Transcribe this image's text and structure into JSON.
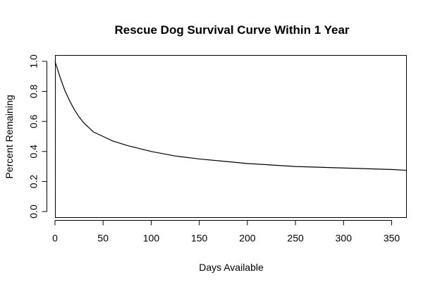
{
  "chart_data": {
    "type": "line",
    "title": "Rescue Dog Survival Curve Within 1 Year",
    "xlabel": "Days Available",
    "ylabel": "Percent Remaining",
    "xlim": [
      0,
      365
    ],
    "ylim": [
      0,
      1
    ],
    "x_ticks": [
      0,
      50,
      100,
      150,
      200,
      250,
      300,
      350
    ],
    "y_ticks": [
      0.0,
      0.2,
      0.4,
      0.6,
      0.8,
      1.0
    ],
    "y_tick_labels": [
      "0.0",
      "0.2",
      "0.4",
      "0.6",
      "0.8",
      "1.0"
    ],
    "grid": false,
    "series": [
      {
        "x": [
          0,
          5,
          10,
          15,
          20,
          25,
          30,
          40,
          50,
          60,
          75,
          100,
          125,
          150,
          175,
          200,
          250,
          300,
          350,
          365
        ],
        "y": [
          1.0,
          0.9,
          0.81,
          0.74,
          0.68,
          0.63,
          0.59,
          0.53,
          0.5,
          0.47,
          0.44,
          0.4,
          0.37,
          0.35,
          0.335,
          0.32,
          0.3,
          0.29,
          0.28,
          0.275
        ]
      }
    ]
  }
}
